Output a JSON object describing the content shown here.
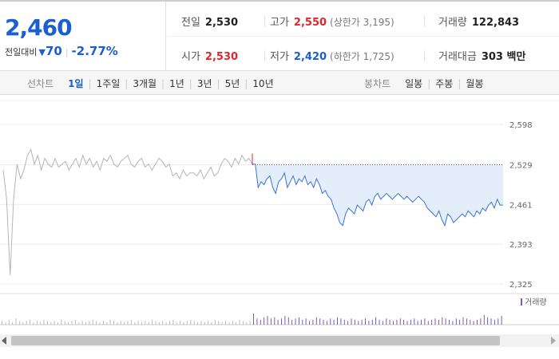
{
  "summary": {
    "current_price": "2,460",
    "diff_label": "전일대비",
    "diff_icon": "down-triangle-icon",
    "diff_amount": "70",
    "diff_rate": "-2.77%",
    "stats": {
      "prev_close_label": "전일",
      "prev_close": "2,530",
      "high_label": "고가",
      "high": "2,550",
      "upper_limit": "(상한가 3,195)",
      "volume_label": "거래량",
      "volume": "122,843",
      "open_label": "시가",
      "open": "2,530",
      "low_label": "저가",
      "low": "2,420",
      "lower_limit": "(하한가 1,725)",
      "trade_value_label": "거래대금",
      "trade_value": "303 백만"
    }
  },
  "tabs": {
    "line_group_title": "선차트",
    "line_tabs": [
      "1일",
      "1주일",
      "3개월",
      "1년",
      "3년",
      "5년",
      "10년"
    ],
    "active_line_tab": "1일",
    "candle_group_title": "봉차트",
    "candle_tabs": [
      "일봉",
      "주봉",
      "월봉"
    ]
  },
  "chart_data": {
    "type": "line",
    "ylim": [
      2325,
      2598
    ],
    "y_ticks": [
      "2,598",
      "2,529",
      "2,461",
      "2,393",
      "2,325"
    ],
    "y_tick_values": [
      2598,
      2529,
      2461,
      2393,
      2325
    ],
    "reference_line": 2529,
    "volume_legend": "거래량",
    "colors": {
      "prev_series": "#b5b5b5",
      "today_series": "#3d73d3",
      "fill": "#e4eefb",
      "up": "#e1262c",
      "down": "#1a5fd0"
    },
    "series": [
      {
        "values": [
          2520,
          2470,
          2340,
          2470,
          2530,
          2505,
          2520,
          2545,
          2555,
          2530,
          2545,
          2520,
          2540,
          2530,
          2525,
          2540,
          2525,
          2530,
          2535,
          2520,
          2530,
          2540,
          2525,
          2545,
          2530,
          2540,
          2525,
          2535,
          2520,
          2540,
          2535,
          2545,
          2530,
          2525,
          2535,
          2540,
          2545,
          2530,
          2525,
          2535,
          2540,
          2525,
          2530,
          2520,
          2530,
          2540,
          2535,
          2525,
          2530,
          2510,
          2515,
          2505,
          2520,
          2510,
          2515,
          2515,
          2510,
          2520,
          2505,
          2515,
          2525,
          2510,
          2515,
          2530,
          2540,
          2535,
          2525,
          2540,
          2530,
          2545,
          2535,
          2540,
          2530
        ]
      },
      {
        "values": [
          2530,
          2530,
          2490,
          2500,
          2495,
          2505,
          2510,
          2490,
          2480,
          2500,
          2505,
          2515,
          2490,
          2500,
          2510,
          2495,
          2505,
          2500,
          2510,
          2495,
          2500,
          2490,
          2505,
          2495,
          2480,
          2485,
          2475,
          2470,
          2455,
          2445,
          2430,
          2425,
          2445,
          2455,
          2450,
          2445,
          2460,
          2455,
          2450,
          2465,
          2470,
          2460,
          2475,
          2480,
          2470,
          2475,
          2480,
          2475,
          2470,
          2475,
          2480,
          2475,
          2470,
          2475,
          2470,
          2465,
          2470,
          2475,
          2470,
          2465,
          2455,
          2450,
          2445,
          2440,
          2450,
          2435,
          2425,
          2445,
          2440,
          2430,
          2435,
          2440,
          2445,
          2440,
          2450,
          2445,
          2440,
          2450,
          2445,
          2455,
          2450,
          2460,
          2465,
          2455,
          2470,
          2460,
          2460
        ]
      }
    ],
    "volume": [
      3,
      2,
      4,
      2,
      5,
      3,
      2,
      3,
      4,
      2,
      3,
      2,
      4,
      3,
      2,
      3,
      2,
      4,
      3,
      2,
      3,
      4,
      2,
      3,
      2,
      3,
      4,
      3,
      2,
      3,
      2,
      4,
      3,
      2,
      3,
      2,
      3,
      4,
      2,
      3,
      2,
      3,
      2,
      4,
      3,
      2,
      3,
      2,
      3,
      4,
      2,
      3,
      2,
      3,
      4,
      3,
      2,
      3,
      2,
      3,
      2,
      4,
      3,
      2,
      3,
      2,
      3,
      2,
      4,
      3,
      2,
      3,
      9,
      5,
      4,
      6,
      7,
      5,
      6,
      4,
      5,
      7,
      6,
      4,
      5,
      6,
      4,
      5,
      3,
      4,
      6,
      5,
      4,
      3,
      5,
      4,
      6,
      5,
      4,
      3,
      5,
      4,
      3,
      4,
      5,
      3,
      4,
      6,
      4,
      3,
      5,
      4,
      3,
      4,
      5,
      4,
      3,
      4,
      5,
      3,
      4,
      5,
      3,
      4,
      5,
      4,
      6,
      5,
      4,
      3,
      5,
      4,
      6,
      5,
      4,
      3,
      4,
      5,
      8,
      6,
      5,
      4,
      5,
      7
    ]
  }
}
